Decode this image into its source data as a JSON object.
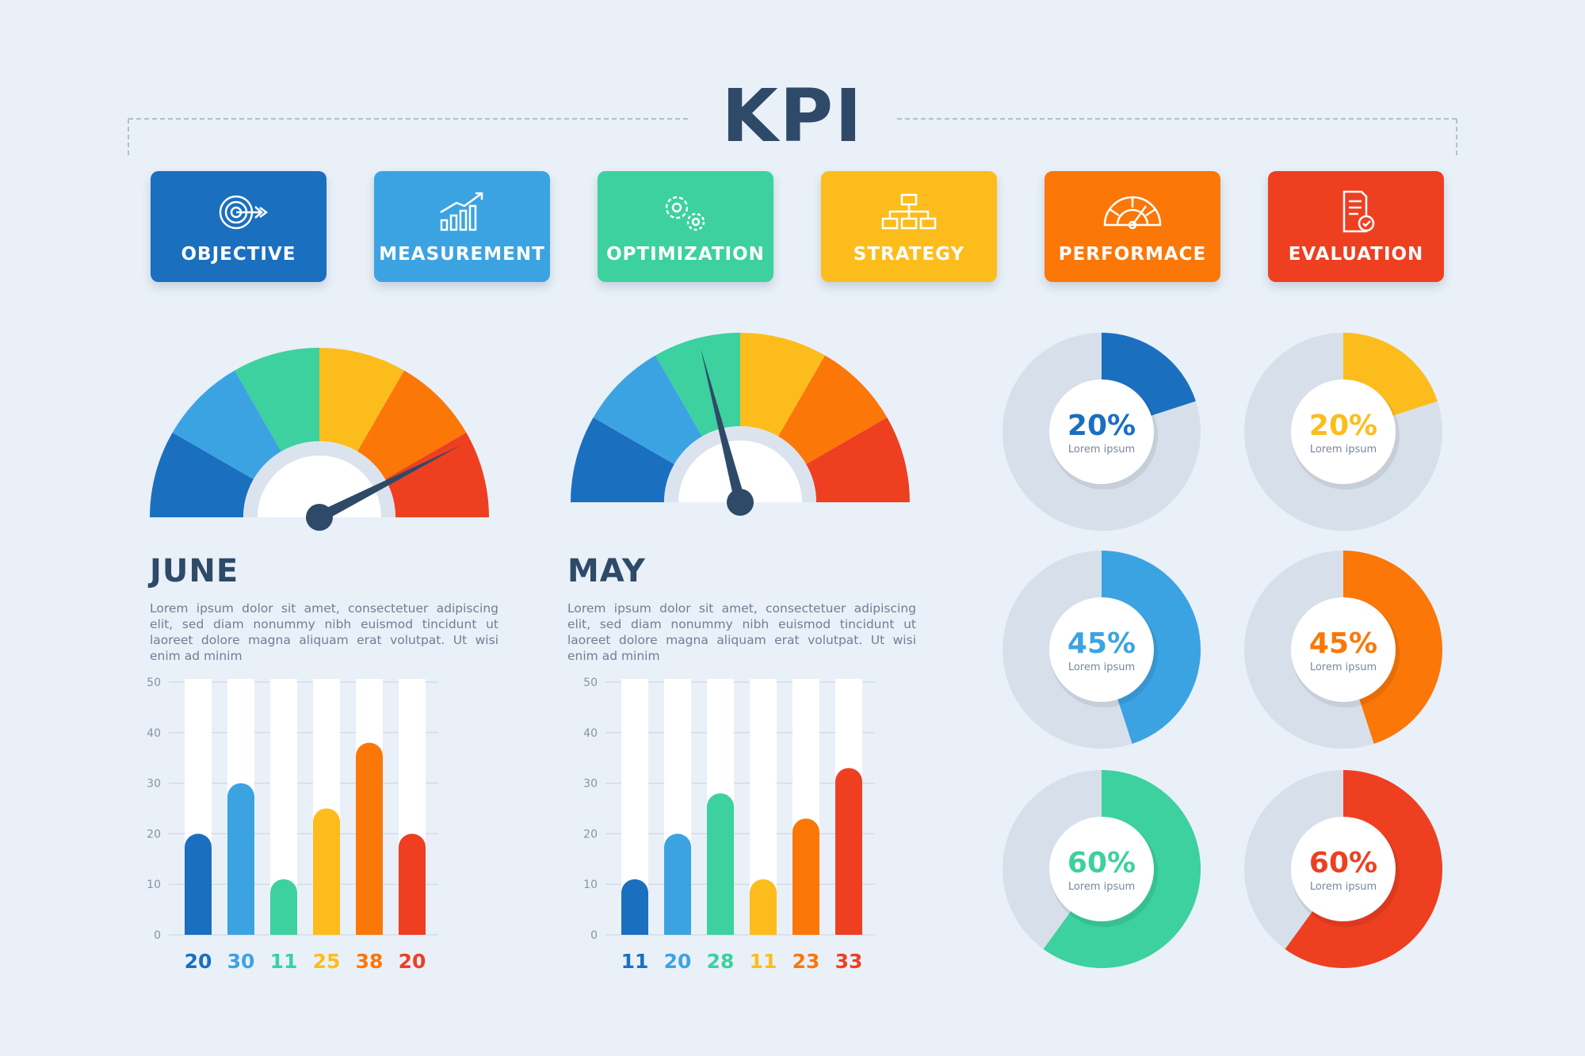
{
  "header": {
    "title": "KPI"
  },
  "cards": [
    {
      "label": "OBJECTIVE",
      "icon": "target-icon",
      "color": "#1a6fbf"
    },
    {
      "label": "MEASUREMENT",
      "icon": "growth-chart-icon",
      "color": "#3ca3e3"
    },
    {
      "label": "OPTIMIZATION",
      "icon": "gears-icon",
      "color": "#3cd19e"
    },
    {
      "label": "STRATEGY",
      "icon": "flowchart-icon",
      "color": "#fcbd1c"
    },
    {
      "label": "PERFORMACE",
      "icon": "speedometer-icon",
      "color": "#fb7708"
    },
    {
      "label": "EVALUATION",
      "icon": "document-check-icon",
      "color": "#ee3f21"
    }
  ],
  "colors": {
    "palette": [
      "#1a6fbf",
      "#3ca3e3",
      "#3cd19e",
      "#fcbd1c",
      "#fb7708",
      "#ee3f21"
    ],
    "text_dark": "#2e4a68",
    "donut_track": "#d7e0ea"
  },
  "panels": [
    {
      "month": "JUNE",
      "description": "Lorem ipsum dolor sit amet, consectetuer adipiscing elit, sed diam nonummy nibh euismod tincidunt ut laoreet dolore magna aliquam erat volutpat. Ut wisi enim ad minim",
      "gauge_level": 0.85
    },
    {
      "month": "MAY",
      "description": "Lorem ipsum dolor sit amet, consectetuer adipiscing elit, sed diam nonummy nibh euismod tincidunt ut laoreet dolore magna aliquam erat volutpat. Ut wisi enim ad minim",
      "gauge_level": 0.42
    }
  ],
  "chart_data": [
    {
      "type": "bar",
      "name": "June",
      "values": [
        20,
        30,
        11,
        25,
        38,
        20
      ],
      "value_labels": [
        "20",
        "30",
        "11",
        "25",
        "38",
        "20"
      ],
      "ylim": [
        0,
        50
      ],
      "yticks": [
        "0",
        "10",
        "20",
        "30",
        "40",
        "50"
      ],
      "grid": true
    },
    {
      "type": "bar",
      "name": "May",
      "values": [
        11,
        20,
        28,
        11,
        23,
        33
      ],
      "value_labels": [
        "11",
        "20",
        "28",
        "11",
        "23",
        "33"
      ],
      "ylim": [
        0,
        50
      ],
      "yticks": [
        "0",
        "10",
        "20",
        "30",
        "40",
        "50"
      ],
      "grid": true
    },
    {
      "type": "pie",
      "donuts": [
        {
          "value": 20,
          "label": "20%",
          "sub": "Lorem ipsum",
          "color": "#1a6fbf"
        },
        {
          "value": 20,
          "label": "20%",
          "sub": "Lorem ipsum",
          "color": "#fcbd1c"
        },
        {
          "value": 45,
          "label": "45%",
          "sub": "Lorem ipsum",
          "color": "#3ca3e3"
        },
        {
          "value": 45,
          "label": "45%",
          "sub": "Lorem ipsum",
          "color": "#fb7708"
        },
        {
          "value": 60,
          "label": "60%",
          "sub": "Lorem ipsum",
          "color": "#3cd19e"
        },
        {
          "value": 60,
          "label": "60%",
          "sub": "Lorem ipsum",
          "color": "#ee3f21"
        }
      ]
    }
  ]
}
